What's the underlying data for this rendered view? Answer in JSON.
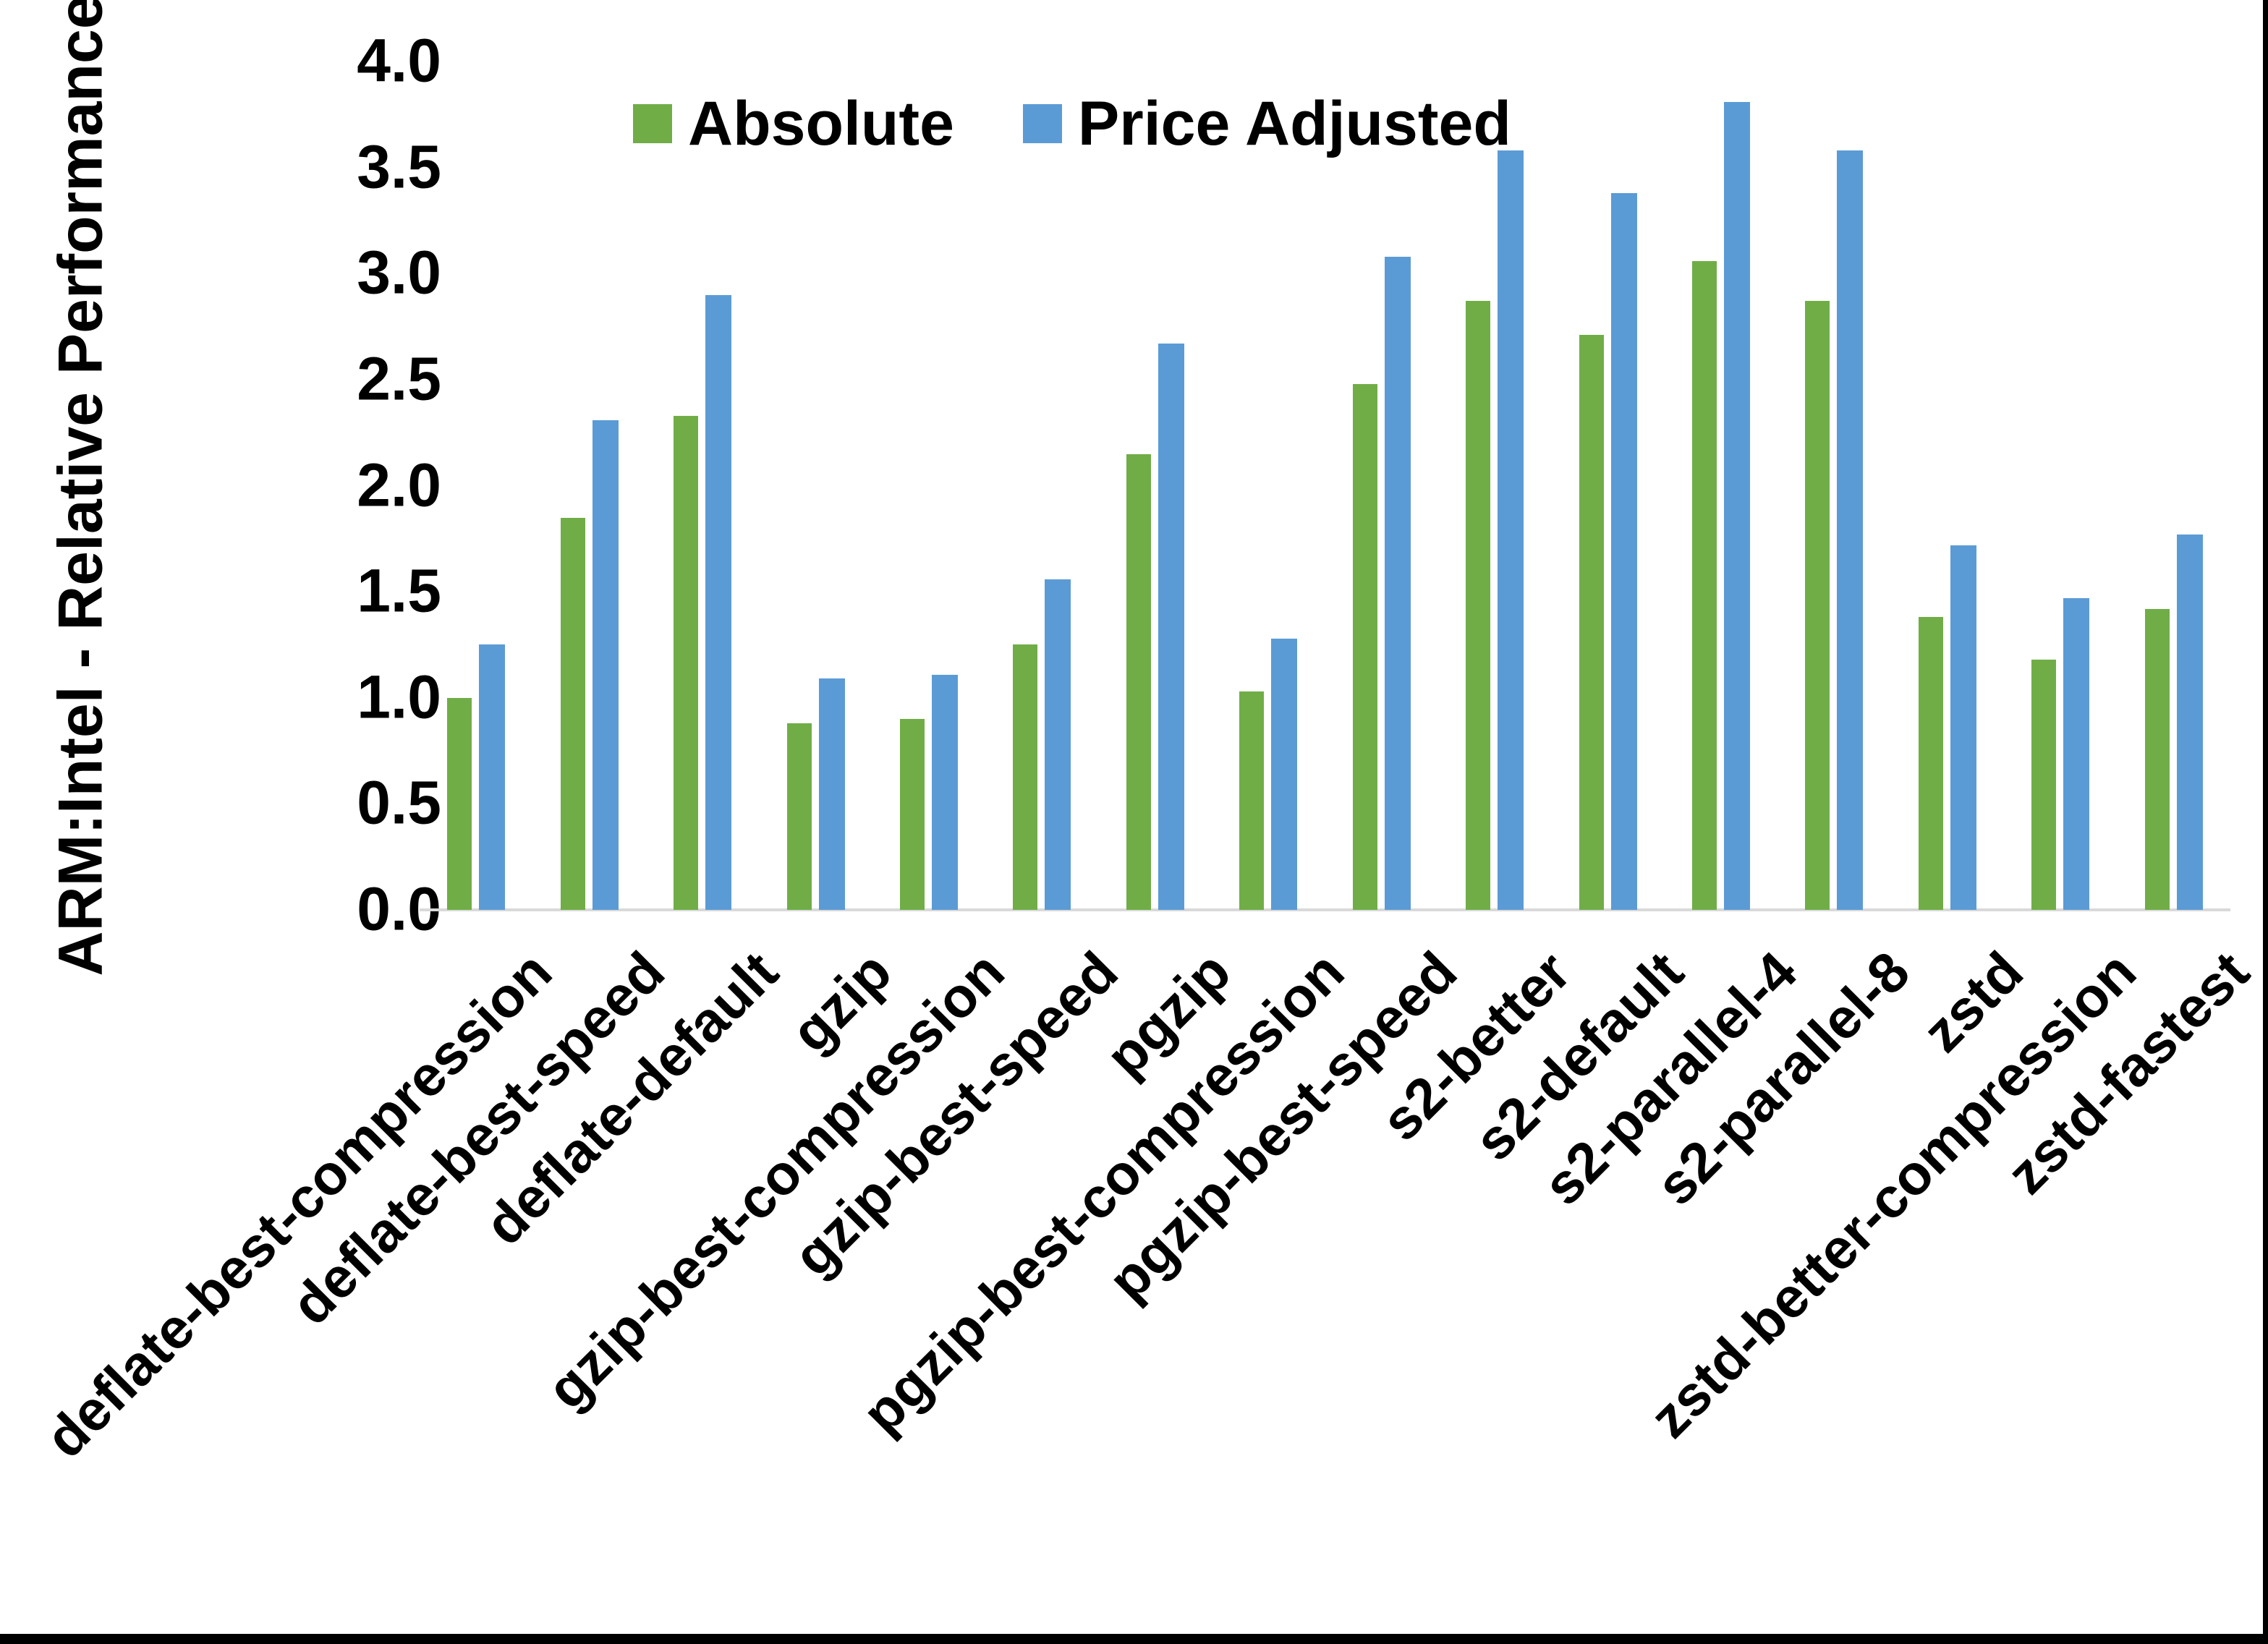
{
  "chart_data": {
    "type": "bar",
    "title": "",
    "xlabel": "",
    "ylabel": "ARM:Intel - Relative Performance",
    "ylim": [
      0.0,
      4.0
    ],
    "ytick_step": 0.5,
    "ytick_labels": [
      "0.0",
      "0.5",
      "1.0",
      "1.5",
      "2.0",
      "2.5",
      "3.0",
      "3.5",
      "4.0"
    ],
    "grid": false,
    "legend_position": "top-center",
    "categories": [
      "deflate-best-compression",
      "deflate-best-speed",
      "deflate-default",
      "gzip",
      "gzip-best-compression",
      "gzip-best-speed",
      "pgzip",
      "pgzip-best-compression",
      "pgzip-best-speed",
      "s2-better",
      "s2-default",
      "s2-parallel-4",
      "s2-parallel-8",
      "zstd",
      "zstd-better-compression",
      "zstd-fastest"
    ],
    "series": [
      {
        "name": "Absolute",
        "color": "#70AD47",
        "values": [
          1.0,
          1.85,
          2.33,
          0.88,
          0.9,
          1.25,
          2.15,
          1.03,
          2.48,
          2.87,
          2.71,
          3.06,
          2.87,
          1.38,
          1.18,
          1.42
        ]
      },
      {
        "name": "Price Adjusted",
        "color": "#5B9BD5",
        "values": [
          1.25,
          2.31,
          2.9,
          1.09,
          1.11,
          1.56,
          2.67,
          1.28,
          3.08,
          3.58,
          3.38,
          3.81,
          3.58,
          1.72,
          1.47,
          1.77
        ]
      }
    ]
  },
  "colors": {
    "axis_line": "#D9D9D9",
    "text": "#000000",
    "frame": "#000000",
    "background": "#FFFFFF"
  }
}
